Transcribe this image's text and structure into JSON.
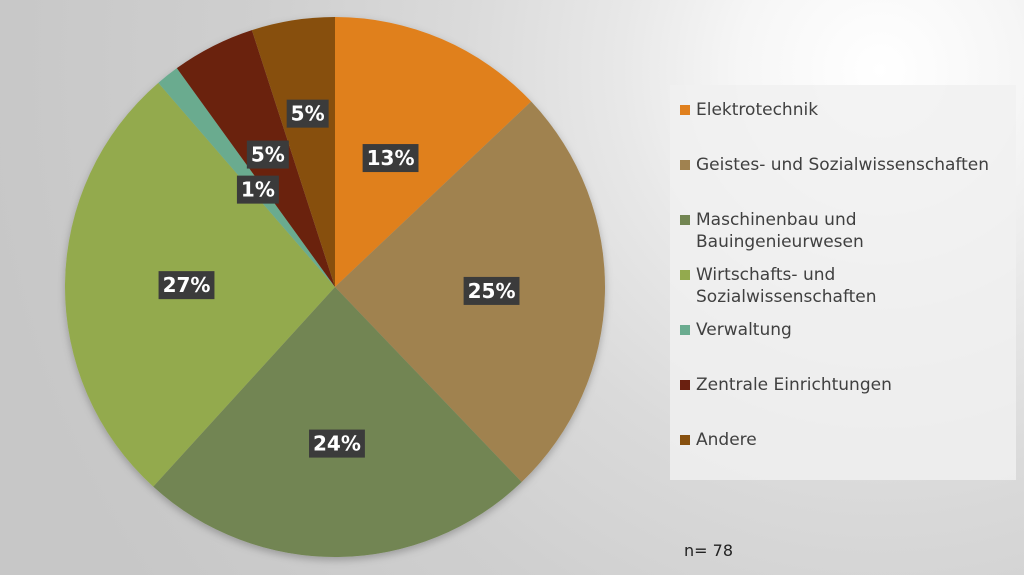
{
  "chart_data": {
    "type": "pie",
    "slices": [
      {
        "label": "Elektrotechnik",
        "value": 13,
        "value_label": "13%",
        "color": "#e0801e"
      },
      {
        "label": "Geistes- und Sozialwissenschaften",
        "value": 25,
        "value_label": "25%",
        "color": "#a08250"
      },
      {
        "label": "Maschinenbau und\nBauingenieurwesen",
        "value": 24,
        "value_label": "24%",
        "color": "#728552"
      },
      {
        "label": "Wirtschafts- und\nSozialwissenschaften",
        "value": 27,
        "value_label": "27%",
        "color": "#93aa4e"
      },
      {
        "label": "Verwaltung",
        "value": 1.4,
        "value_label": "1%",
        "color": "#6aab8f"
      },
      {
        "label": "Zentrale Einrichtungen",
        "value": 5,
        "value_label": "5%",
        "color": "#6a2010"
      },
      {
        "label": "Andere",
        "value": 5,
        "value_label": "5%",
        "color": "#87500f"
      }
    ],
    "legend_position": "right"
  },
  "footnote": "n= 78"
}
